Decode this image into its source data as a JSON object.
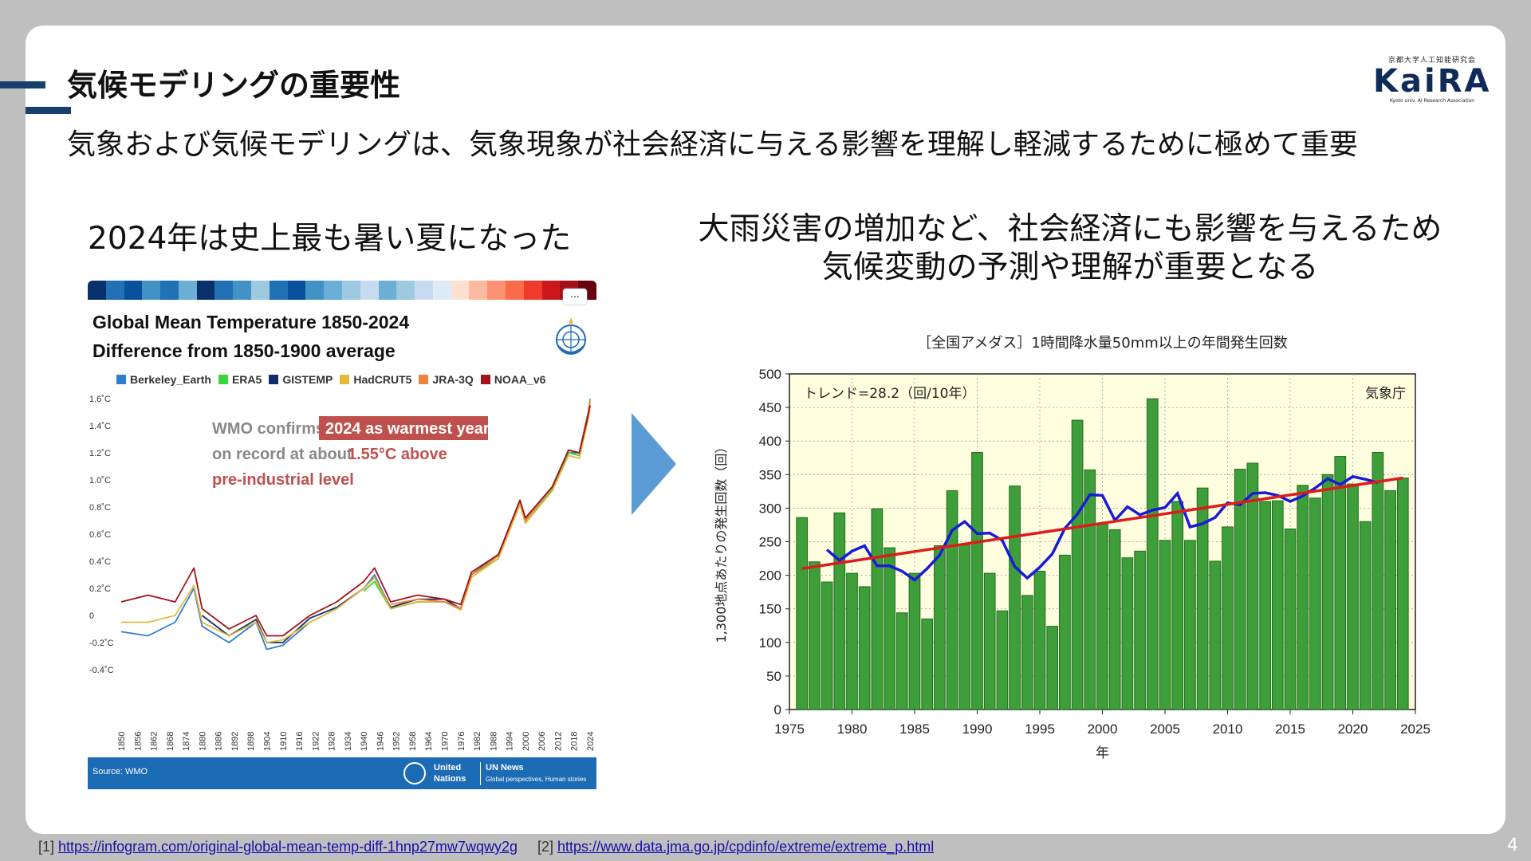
{
  "slide": {
    "title": "気候モデリングの重要性",
    "subtitle": "気象および気候モデリングは、気象現象が社会経済に与える影響を理解し軽減するために極めて重要",
    "left_caption": "2024年は史上最も暑い夏になった",
    "right_caption_line1": "大雨災害の増加など、社会経済にも影響を与えるため",
    "right_caption_line2": "気候変動の予測や理解が重要となる",
    "page_number": "4"
  },
  "logo": {
    "small_text": "京都大学人工知能研究会",
    "name": "KaiRA",
    "sub_text": "Kyoto univ. AI Research Association"
  },
  "infographic": {
    "menu_label": "...",
    "title_line1": "Global Mean Temperature 1850-2024",
    "title_line2": "Difference from 1850-1900 average",
    "annotation_part1": "WMO confirms",
    "annotation_highlight": "2024 as warmest year",
    "annotation_line2_a": "on record at about",
    "annotation_line2_b": "1.55°C above",
    "annotation_line3": "pre-industrial level",
    "source": "Source: WMO",
    "un_label_1": "United",
    "un_label_2": "Nations",
    "news_label": "UN News",
    "news_sub": "Global perspectives, Human stories"
  },
  "chart_data": [
    {
      "type": "line",
      "title": "Global Mean Temperature 1850-2024",
      "subtitle": "Difference from 1850-1900 average",
      "y_unit": "°C",
      "ylim": [
        -0.4,
        1.6
      ],
      "y_ticks": [
        "1.6˚C",
        "1.4˚C",
        "1.2˚C",
        "1.0˚C",
        "0.8˚C",
        "0.6˚C",
        "0.4˚C",
        "0.2˚C",
        "0",
        "-0.2˚C",
        "-0.4˚C"
      ],
      "x_ticks": [
        "1850",
        "1856",
        "1862",
        "1868",
        "1874",
        "1880",
        "1886",
        "1892",
        "1898",
        "1904",
        "1910",
        "1916",
        "1922",
        "1928",
        "1934",
        "1940",
        "1946",
        "1952",
        "1958",
        "1964",
        "1970",
        "1976",
        "1982",
        "1988",
        "1994",
        "2000",
        "2006",
        "2012",
        "2018",
        "2024"
      ],
      "legend_position": "top",
      "x": [
        1850,
        1860,
        1870,
        1877,
        1880,
        1890,
        1900,
        1904,
        1910,
        1920,
        1930,
        1940,
        1944,
        1950,
        1960,
        1970,
        1976,
        1980,
        1990,
        1998,
        2000,
        2010,
        2016,
        2020,
        2023,
        2024
      ],
      "series": [
        {
          "name": "Berkeley_Earth",
          "color": "#2e7dd1",
          "values": [
            -0.12,
            -0.15,
            -0.05,
            0.2,
            -0.08,
            -0.2,
            -0.05,
            -0.25,
            -0.22,
            -0.05,
            0.05,
            0.2,
            0.3,
            0.05,
            0.1,
            0.1,
            0.05,
            0.3,
            0.45,
            0.85,
            0.7,
            0.95,
            1.2,
            1.2,
            1.45,
            1.55
          ]
        },
        {
          "name": "ERA5",
          "color": "#38d438",
          "values": [
            null,
            null,
            null,
            null,
            null,
            null,
            null,
            null,
            null,
            null,
            null,
            0.18,
            0.25,
            0.05,
            0.1,
            0.1,
            0.05,
            0.3,
            0.42,
            0.82,
            0.68,
            0.93,
            1.2,
            1.18,
            1.45,
            1.6
          ]
        },
        {
          "name": "GISTEMP",
          "color": "#0d2d6c",
          "values": [
            null,
            null,
            null,
            null,
            0.0,
            -0.15,
            -0.03,
            -0.2,
            -0.2,
            -0.02,
            0.06,
            0.2,
            0.28,
            0.06,
            0.12,
            0.12,
            0.05,
            0.3,
            0.45,
            0.85,
            0.7,
            0.95,
            1.22,
            1.2,
            1.47,
            1.55
          ]
        },
        {
          "name": "HadCRUT5",
          "color": "#e6b93a",
          "values": [
            -0.05,
            -0.05,
            0.0,
            0.22,
            -0.05,
            -0.15,
            -0.05,
            -0.2,
            -0.18,
            -0.05,
            0.05,
            0.2,
            0.28,
            0.05,
            0.1,
            0.1,
            0.04,
            0.28,
            0.42,
            0.82,
            0.68,
            0.92,
            1.18,
            1.16,
            1.42,
            1.52
          ]
        },
        {
          "name": "JRA-3Q",
          "color": "#ef8040",
          "values": [
            null,
            null,
            null,
            null,
            null,
            null,
            null,
            null,
            null,
            null,
            null,
            null,
            null,
            0.08,
            0.12,
            0.1,
            0.05,
            0.3,
            0.44,
            0.85,
            0.7,
            0.95,
            1.22,
            1.2,
            1.46,
            1.58
          ]
        },
        {
          "name": "NOAA_v6",
          "color": "#a1121a",
          "values": [
            0.1,
            0.15,
            0.1,
            0.35,
            0.05,
            -0.1,
            0.0,
            -0.15,
            -0.15,
            0.0,
            0.1,
            0.25,
            0.35,
            0.1,
            0.15,
            0.12,
            0.08,
            0.32,
            0.45,
            0.85,
            0.72,
            0.95,
            1.22,
            1.2,
            1.45,
            1.55
          ]
        }
      ]
    },
    {
      "type": "bar",
      "title": "［全国アメダス］1時間降水量50mm以上の年間発生回数",
      "xlabel": "年",
      "ylabel": "1,300地点あたりの発生回数（回）",
      "xlim": [
        1975,
        2025
      ],
      "ylim": [
        0,
        500
      ],
      "x_ticks": [
        1975,
        1980,
        1985,
        1990,
        1995,
        2000,
        2005,
        2010,
        2015,
        2020,
        2025
      ],
      "y_ticks": [
        0,
        50,
        100,
        150,
        200,
        250,
        300,
        350,
        400,
        450,
        500
      ],
      "trend_label": "トレンド=28.2（回/10年）",
      "agency_label": "気象庁",
      "categories": [
        1976,
        1977,
        1978,
        1979,
        1980,
        1981,
        1982,
        1983,
        1984,
        1985,
        1986,
        1987,
        1988,
        1989,
        1990,
        1991,
        1992,
        1993,
        1994,
        1995,
        1996,
        1997,
        1998,
        1999,
        2000,
        2001,
        2002,
        2003,
        2004,
        2005,
        2006,
        2007,
        2008,
        2009,
        2010,
        2011,
        2012,
        2013,
        2014,
        2015,
        2016,
        2017,
        2018,
        2019,
        2020,
        2021,
        2022,
        2023,
        2024
      ],
      "series": [
        {
          "name": "bars",
          "color": "#3d9e3a",
          "values": [
            286,
            220,
            190,
            293,
            203,
            183,
            299,
            241,
            144,
            203,
            135,
            244,
            326,
            245,
            383,
            203,
            147,
            333,
            170,
            206,
            124,
            230,
            431,
            357,
            278,
            268,
            226,
            236,
            463,
            252,
            310,
            252,
            330,
            221,
            272,
            358,
            367,
            310,
            311,
            269,
            334,
            315,
            350,
            377,
            336,
            280,
            383,
            326,
            345
          ]
        },
        {
          "name": "5-year moving average",
          "color": "#1a1ad8",
          "x": [
            1978,
            1979,
            1980,
            1981,
            1982,
            1983,
            1984,
            1985,
            1986,
            1987,
            1988,
            1989,
            1990,
            1991,
            1992,
            1993,
            1994,
            1995,
            1996,
            1997,
            1998,
            1999,
            2000,
            2001,
            2002,
            2003,
            2004,
            2005,
            2006,
            2007,
            2008,
            2009,
            2010,
            2011,
            2012,
            2013,
            2014,
            2015,
            2016,
            2017,
            2018,
            2019,
            2020,
            2021,
            2022
          ],
          "values": [
            238,
            222,
            236,
            244,
            214,
            214,
            206,
            193,
            210,
            230,
            267,
            280,
            262,
            263,
            252,
            213,
            196,
            212,
            232,
            270,
            291,
            320,
            319,
            282,
            302,
            290,
            297,
            301,
            322,
            272,
            277,
            286,
            308,
            305,
            322,
            323,
            319,
            310,
            318,
            330,
            344,
            335,
            347,
            343,
            338
          ]
        },
        {
          "name": "trend",
          "color": "#e01b1b",
          "x": [
            1976,
            2024
          ],
          "values": [
            210,
            345
          ]
        }
      ]
    }
  ],
  "footnotes": {
    "ref1_prefix": "[1]",
    "ref1_url": "https://infogram.com/original-global-mean-temp-diff-1hnp27mw7wqwy2g",
    "ref2_prefix": "[2]",
    "ref2_url": "https://www.data.jma.go.jp/cpdinfo/extreme/extreme_p.html"
  },
  "colors": {
    "accent": "#17406d",
    "arrow": "#5b9bd5",
    "bar_green": "#3d9e3a",
    "un_blue": "#1c6bb5",
    "highlight_red": "#c0504d"
  }
}
